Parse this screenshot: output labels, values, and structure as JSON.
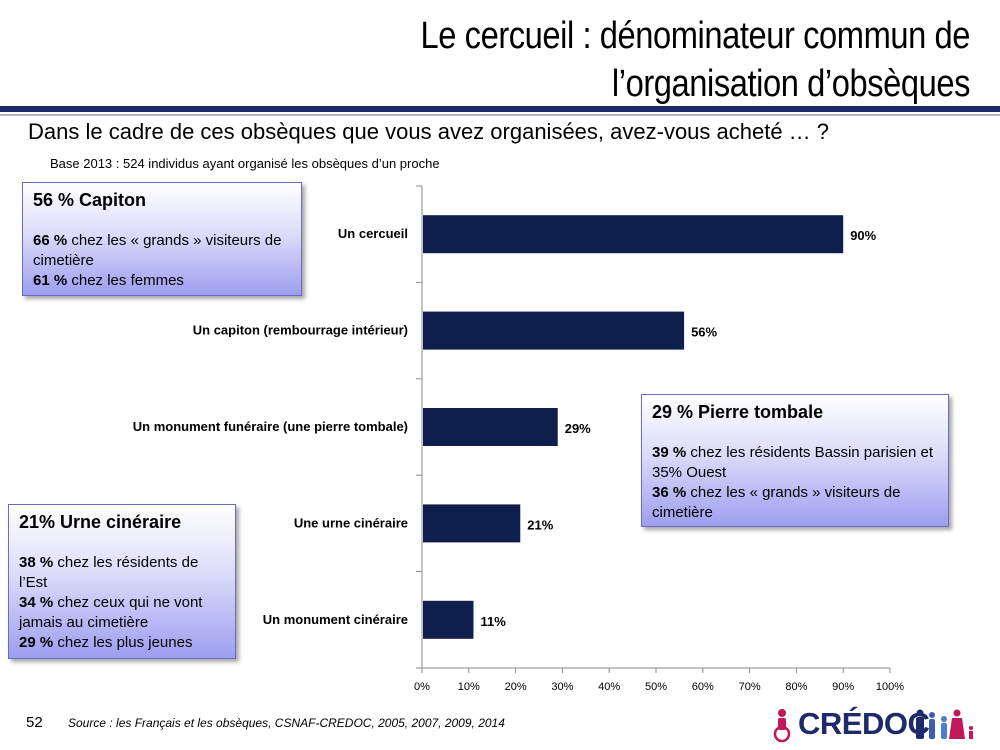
{
  "slide": {
    "title_line1": "Le cercueil : dénominateur commun de",
    "title_line2": "l’organisation d’obsèques",
    "question": "Dans le cadre de ces obsèques que vous avez organisées, avez-vous acheté … ?",
    "base": "Base 2013 : 524 individus ayant organisé les obsèques d’un proche",
    "page_number": "52",
    "source": "Source : les Français et les obsèques, CSNAF-CREDOC, 2005, 2007, 2009, 2014",
    "logo_text": "CRÉDOC",
    "colors": {
      "bar": "#0f1f4d",
      "rule": "#1f2a6b",
      "box_border": "#6a6cc0",
      "logo_accent": "#c2185b"
    }
  },
  "boxes": {
    "capiton": {
      "head": "56 % Capiton",
      "l1_bold": "66 %",
      "l1_text": " chez les « grands » visiteurs de cimetière",
      "l2_bold": "61 %",
      "l2_text": " chez les femmes"
    },
    "pierre": {
      "head": "29 % Pierre tombale",
      "l1_bold": "39 %",
      "l1_text": " chez les résidents Bassin parisien et 35% Ouest",
      "l2_bold": "36 %",
      "l2_text": " chez les « grands » visiteurs de cimetière"
    },
    "urne": {
      "head": "21% Urne cinéraire",
      "l1_bold": "38 %",
      "l1_text": " chez les résidents de l’Est",
      "l2_bold": "34 %",
      "l2_text": " chez ceux qui ne vont jamais au cimetière",
      "l3_bold": "29 %",
      "l3_text": " chez les plus jeunes"
    }
  },
  "chart_data": {
    "type": "bar",
    "orientation": "horizontal",
    "categories": [
      "Un cercueil",
      "Un capiton (rembourrage intérieur)",
      "Un monument funéraire (une pierre tombale)",
      "Une urne cinéraire",
      "Un monument cinéraire"
    ],
    "values": [
      90,
      56,
      29,
      21,
      11
    ],
    "value_labels": [
      "90%",
      "56%",
      "29%",
      "21%",
      "11%"
    ],
    "xlim": [
      0,
      100
    ],
    "xticks": [
      "0%",
      "10%",
      "20%",
      "30%",
      "40%",
      "50%",
      "60%",
      "70%",
      "80%",
      "90%",
      "100%"
    ],
    "grid": false,
    "legend": "none"
  }
}
